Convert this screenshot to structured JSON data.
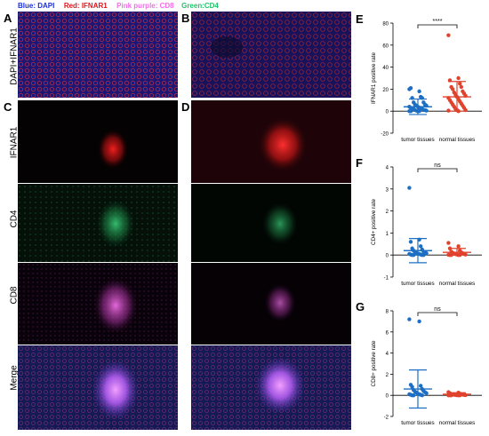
{
  "legend": {
    "blue": "Blue: DAPI",
    "red": "Red: IFNAR1",
    "pink": "Pink purple: CD8",
    "green": "Green:CD4"
  },
  "colors": {
    "dapi": "#1a2fd6",
    "ifnar1": "#e0151b",
    "cd8": "#f06ee6",
    "cd4": "#22c46a",
    "tumor": "#1d6fc4",
    "normal": "#e0422d"
  },
  "panel_letters": {
    "a": "A",
    "b": "B",
    "c": "C",
    "d": "D",
    "e": "E",
    "f": "F",
    "g": "G"
  },
  "row_labels": {
    "r1": "DAPI+IFNAR1",
    "r2": "IFNAR1",
    "r3": "CD4",
    "r4": "CD8",
    "r5": "Merge"
  },
  "chart_data": [
    {
      "type": "scatter",
      "panel": "E",
      "ylabel": "IFNAR1 positive rate",
      "categories": [
        "tumor tissues",
        "normal tissues"
      ],
      "ylim": [
        -20,
        80
      ],
      "yticks": [
        -20,
        0,
        20,
        40,
        60,
        80
      ],
      "significance": "****",
      "series": [
        {
          "category": "tumor tissues",
          "mean": 4,
          "sd_upper": 11,
          "sd_lower": -3,
          "values": [
            20,
            18,
            21,
            13,
            12,
            12,
            8,
            8,
            6,
            6,
            5,
            5,
            4,
            4,
            3,
            3,
            3,
            2,
            2,
            2,
            1,
            1,
            1,
            0.5,
            0.5,
            0,
            0,
            0,
            0
          ]
        },
        {
          "category": "normal tissues",
          "mean": 13,
          "sd_upper": 27,
          "sd_lower": 0,
          "values": [
            69,
            30,
            28,
            25,
            22,
            22,
            20,
            18,
            17,
            16,
            15,
            14,
            13,
            12,
            11,
            10,
            9,
            8,
            7,
            6,
            5,
            4,
            3,
            2,
            1,
            1,
            0.5,
            0
          ]
        }
      ]
    },
    {
      "type": "scatter",
      "panel": "F",
      "ylabel": "CD4+ positive rate",
      "categories": [
        "tumor tissues",
        "normal tissues"
      ],
      "ylim": [
        -1,
        4
      ],
      "yticks": [
        -1,
        0,
        1,
        2,
        3,
        4
      ],
      "significance": "ns",
      "series": [
        {
          "category": "tumor tissues",
          "mean": 0.2,
          "sd_upper": 0.75,
          "sd_lower": -0.35,
          "values": [
            3.05,
            0.7,
            0.6,
            0.4,
            0.3,
            0.25,
            0.2,
            0.15,
            0.1,
            0.1,
            0.1,
            0.08,
            0.05,
            0.05,
            0.05,
            0.02,
            0.02,
            0,
            0,
            0,
            0
          ]
        },
        {
          "category": "normal tissues",
          "mean": 0.12,
          "sd_upper": 0.3,
          "sd_lower": 0,
          "values": [
            0.55,
            0.4,
            0.3,
            0.2,
            0.15,
            0.12,
            0.1,
            0.08,
            0.06,
            0.05,
            0.04,
            0.02,
            0.02,
            0.01,
            0,
            0,
            0,
            0
          ]
        }
      ]
    },
    {
      "type": "scatter",
      "panel": "G",
      "ylabel": "CD8+ positive rate",
      "categories": [
        "tumor tissues",
        "normal tissues"
      ],
      "ylim": [
        -2,
        8
      ],
      "yticks": [
        -2,
        0,
        2,
        4,
        6,
        8
      ],
      "significance": "ns",
      "series": [
        {
          "category": "tumor tissues",
          "mean": 0.6,
          "sd_upper": 2.4,
          "sd_lower": -1.2,
          "values": [
            7.2,
            7.0,
            1.0,
            0.9,
            0.8,
            0.6,
            0.5,
            0.4,
            0.35,
            0.3,
            0.25,
            0.2,
            0.15,
            0.1,
            0.1,
            0.05,
            0.05,
            0,
            0,
            0
          ]
        },
        {
          "category": "normal tissues",
          "mean": 0.1,
          "sd_upper": 0.25,
          "sd_lower": 0,
          "values": [
            0.3,
            0.25,
            0.2,
            0.15,
            0.12,
            0.1,
            0.08,
            0.06,
            0.05,
            0.04,
            0.03,
            0.02,
            0.01,
            0,
            0,
            0,
            0,
            0
          ]
        }
      ]
    }
  ]
}
